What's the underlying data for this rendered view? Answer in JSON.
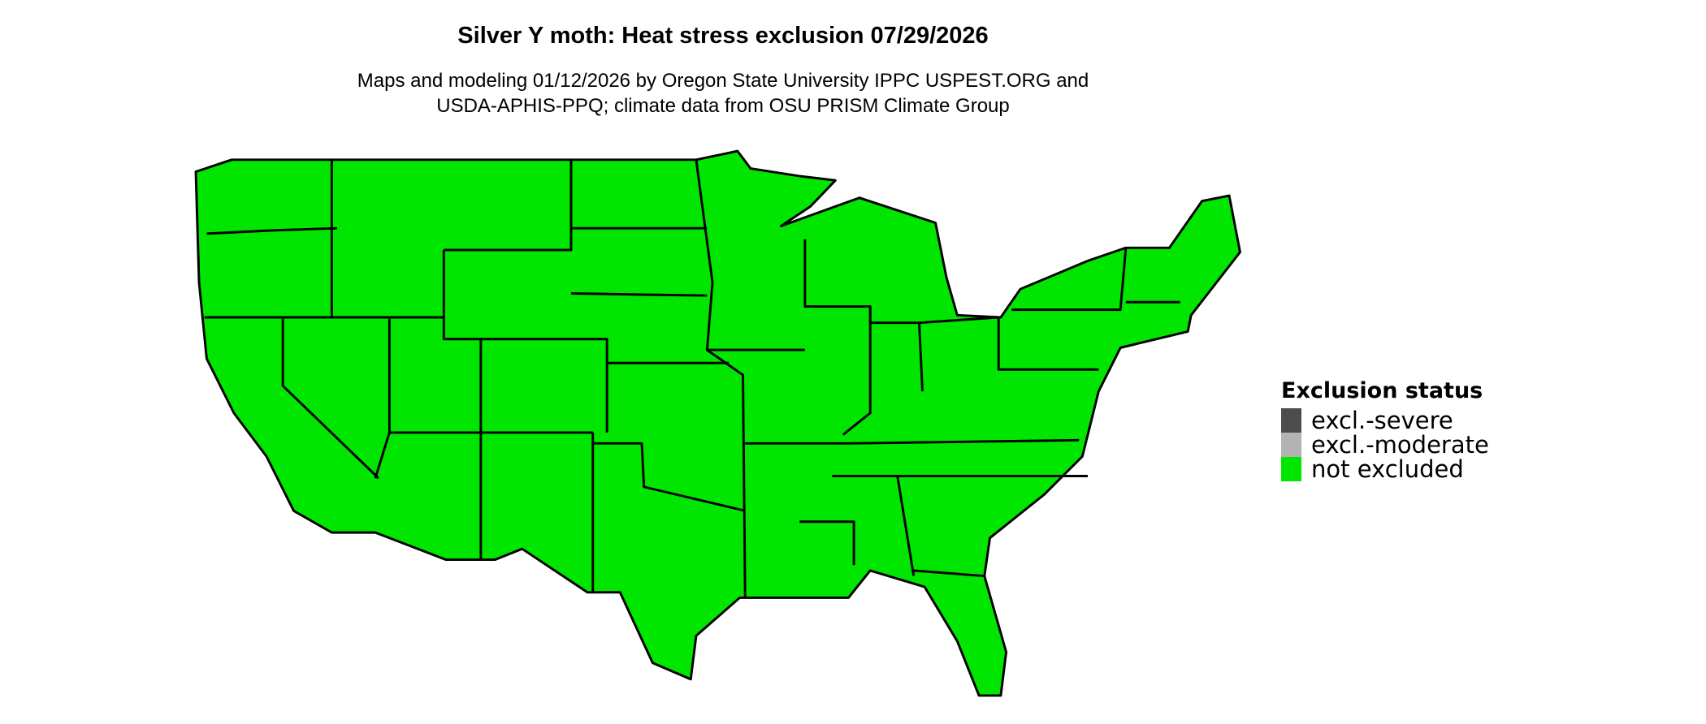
{
  "title": "Silver Y moth: Heat stress exclusion 07/29/2026",
  "subtitle_line1": "Maps and modeling 01/12/2026 by Oregon State University IPPC USPEST.ORG and",
  "subtitle_line2": "USDA-APHIS-PPQ; climate data from OSU PRISM Climate Group",
  "map": {
    "region": "Contiguous United States",
    "predominant_status": "not excluded",
    "border_color": "#000000"
  },
  "legend": {
    "title": "Exclusion status",
    "items": [
      {
        "label": "excl.-severe",
        "color": "#4D4D4D"
      },
      {
        "label": "excl.-moderate",
        "color": "#B3B3B3"
      },
      {
        "label": "not excluded",
        "color": "#00E600"
      }
    ]
  }
}
